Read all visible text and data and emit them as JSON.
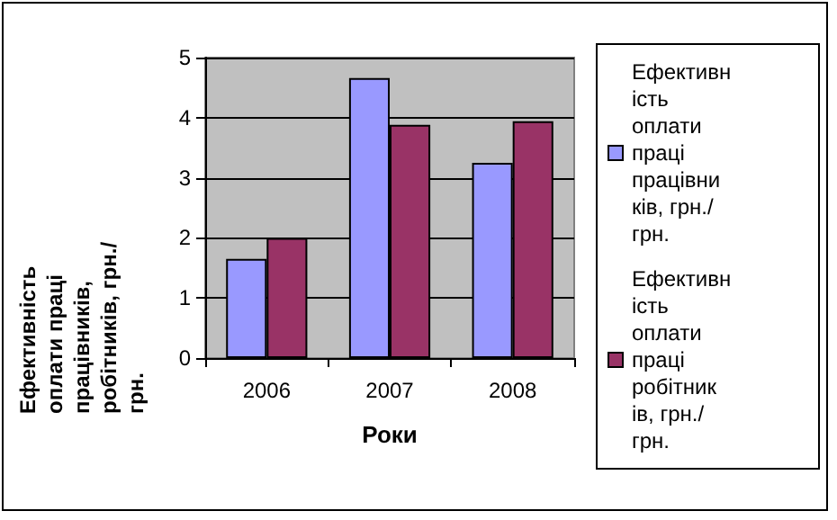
{
  "chart_data": {
    "type": "bar",
    "xlabel": "Роки",
    "ylabel": "Ефективність оплати праці працівників, робітників, грн./грн.",
    "categories": [
      "2006",
      "2007",
      "2008"
    ],
    "series": [
      {
        "name": "Ефективність оплати праці працівників, грн./грн.",
        "color": "#9999ff",
        "values": [
          1.65,
          4.66,
          3.25
        ]
      },
      {
        "name": "Ефективність оплати праці робітників, грн./грн.",
        "color": "#993366",
        "values": [
          2.0,
          3.88,
          3.94
        ]
      }
    ],
    "ylim": [
      0,
      5
    ],
    "yticks": [
      0,
      1,
      2,
      3,
      4,
      5
    ],
    "grid": "y",
    "legend": "right"
  }
}
